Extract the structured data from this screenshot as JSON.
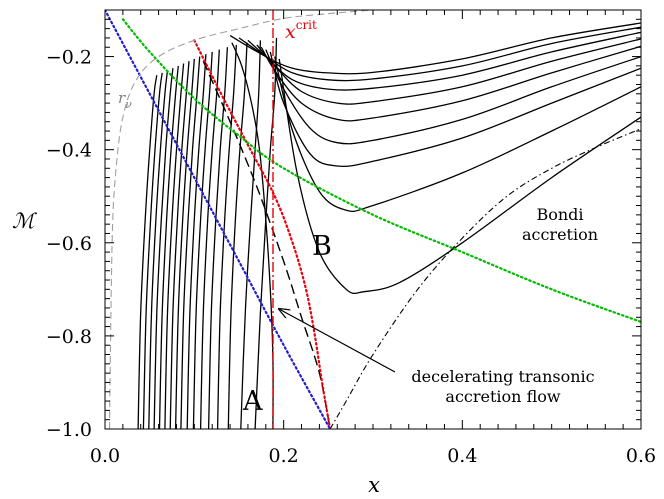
{
  "chart_data": {
    "type": "line",
    "xlabel": "x",
    "ylabel": "ℳ",
    "xlim": [
      0.0,
      0.6
    ],
    "ylim": [
      -1.0,
      -0.1
    ],
    "xticks": [
      "0.0",
      "0.2",
      "0.4",
      "0.6"
    ],
    "yticks": [
      "−1.0",
      "−0.8",
      "−0.6",
      "−0.4",
      "−0.2"
    ],
    "grid": false,
    "annotations": {
      "x_crit": {
        "base": "x",
        "sup": "crit",
        "x": 0.187
      },
      "r_nu": {
        "base": "r",
        "sub": "ν"
      },
      "region_A": "A",
      "region_B": "B",
      "bondi_line1": "Bondi",
      "bondi_line2": "accretion",
      "flow_line1": "decelerating transonic",
      "flow_line2": "accretion flow"
    },
    "colors": {
      "xcrit_line": "#e8000b",
      "red_dotted": "#e8000b",
      "blue_dotted": "#1f1fd0",
      "green_dotted": "#00bb00",
      "gray_dashed": "#a0a0a0",
      "solution_curves": "#000000"
    },
    "x_critical": 0.187,
    "sonic_point": {
      "x": 0.252,
      "y": -1.0
    },
    "series": [
      {
        "role": "subsonic-falling",
        "style": "solid",
        "points": [
          [
            0.037,
            -1.0
          ],
          [
            0.04,
            -0.75
          ],
          [
            0.045,
            -0.55
          ],
          [
            0.05,
            -0.4
          ],
          [
            0.055,
            -0.28
          ],
          [
            0.058,
            -0.24
          ]
        ]
      },
      {
        "role": "subsonic-falling",
        "style": "solid",
        "points": [
          [
            0.043,
            -1.0
          ],
          [
            0.046,
            -0.75
          ],
          [
            0.051,
            -0.55
          ],
          [
            0.056,
            -0.4
          ],
          [
            0.061,
            -0.28
          ],
          [
            0.064,
            -0.235
          ]
        ]
      },
      {
        "role": "subsonic-falling",
        "style": "solid",
        "points": [
          [
            0.049,
            -1.0
          ],
          [
            0.052,
            -0.75
          ],
          [
            0.057,
            -0.55
          ],
          [
            0.062,
            -0.4
          ],
          [
            0.067,
            -0.28
          ],
          [
            0.07,
            -0.23
          ]
        ]
      },
      {
        "role": "subsonic-falling",
        "style": "solid",
        "points": [
          [
            0.055,
            -1.0
          ],
          [
            0.058,
            -0.75
          ],
          [
            0.063,
            -0.55
          ],
          [
            0.068,
            -0.4
          ],
          [
            0.073,
            -0.28
          ],
          [
            0.076,
            -0.225
          ]
        ]
      },
      {
        "role": "subsonic-falling",
        "style": "solid",
        "points": [
          [
            0.061,
            -1.0
          ],
          [
            0.064,
            -0.75
          ],
          [
            0.069,
            -0.55
          ],
          [
            0.074,
            -0.4
          ],
          [
            0.079,
            -0.28
          ],
          [
            0.082,
            -0.22
          ]
        ]
      },
      {
        "role": "subsonic-falling",
        "style": "solid",
        "points": [
          [
            0.067,
            -1.0
          ],
          [
            0.07,
            -0.75
          ],
          [
            0.075,
            -0.55
          ],
          [
            0.08,
            -0.4
          ],
          [
            0.085,
            -0.28
          ],
          [
            0.088,
            -0.215
          ]
        ]
      },
      {
        "role": "subsonic-falling",
        "style": "solid",
        "points": [
          [
            0.073,
            -1.0
          ],
          [
            0.076,
            -0.75
          ],
          [
            0.081,
            -0.55
          ],
          [
            0.086,
            -0.4
          ],
          [
            0.091,
            -0.28
          ],
          [
            0.094,
            -0.21
          ]
        ]
      },
      {
        "role": "subsonic-falling",
        "style": "solid",
        "points": [
          [
            0.079,
            -1.0
          ],
          [
            0.082,
            -0.75
          ],
          [
            0.087,
            -0.55
          ],
          [
            0.092,
            -0.4
          ],
          [
            0.097,
            -0.28
          ],
          [
            0.1,
            -0.205
          ]
        ]
      },
      {
        "role": "subsonic-falling",
        "style": "solid",
        "points": [
          [
            0.085,
            -1.0
          ],
          [
            0.088,
            -0.75
          ],
          [
            0.093,
            -0.55
          ],
          [
            0.098,
            -0.4
          ],
          [
            0.103,
            -0.28
          ],
          [
            0.106,
            -0.2
          ]
        ]
      },
      {
        "role": "subsonic-falling",
        "style": "solid",
        "points": [
          [
            0.092,
            -1.0
          ],
          [
            0.095,
            -0.75
          ],
          [
            0.1,
            -0.55
          ],
          [
            0.105,
            -0.4
          ],
          [
            0.11,
            -0.28
          ],
          [
            0.113,
            -0.195
          ]
        ]
      },
      {
        "role": "subsonic-falling",
        "style": "solid",
        "points": [
          [
            0.099,
            -1.0
          ],
          [
            0.102,
            -0.75
          ],
          [
            0.107,
            -0.55
          ],
          [
            0.112,
            -0.4
          ],
          [
            0.117,
            -0.28
          ],
          [
            0.12,
            -0.19
          ]
        ]
      },
      {
        "role": "subsonic-falling",
        "style": "solid",
        "points": [
          [
            0.107,
            -1.0
          ],
          [
            0.11,
            -0.75
          ],
          [
            0.115,
            -0.55
          ],
          [
            0.12,
            -0.4
          ],
          [
            0.125,
            -0.28
          ],
          [
            0.128,
            -0.185
          ]
        ]
      },
      {
        "role": "subsonic-falling",
        "style": "solid",
        "points": [
          [
            0.116,
            -1.0
          ],
          [
            0.119,
            -0.75
          ],
          [
            0.124,
            -0.55
          ],
          [
            0.129,
            -0.4
          ],
          [
            0.134,
            -0.28
          ],
          [
            0.137,
            -0.18
          ]
        ]
      },
      {
        "role": "subsonic-falling",
        "style": "solid",
        "points": [
          [
            0.126,
            -1.0
          ],
          [
            0.129,
            -0.75
          ],
          [
            0.134,
            -0.55
          ],
          [
            0.139,
            -0.4
          ],
          [
            0.144,
            -0.28
          ],
          [
            0.147,
            -0.175
          ]
        ]
      },
      {
        "role": "subsonic-falling",
        "style": "solid",
        "points": [
          [
            0.138,
            -1.0
          ],
          [
            0.141,
            -0.75
          ],
          [
            0.146,
            -0.55
          ],
          [
            0.151,
            -0.4
          ],
          [
            0.156,
            -0.28
          ],
          [
            0.159,
            -0.17
          ]
        ]
      },
      {
        "role": "subsonic-falling",
        "style": "solid",
        "points": [
          [
            0.152,
            -1.0
          ],
          [
            0.157,
            -0.75
          ],
          [
            0.163,
            -0.55
          ],
          [
            0.168,
            -0.4
          ],
          [
            0.172,
            -0.28
          ],
          [
            0.174,
            -0.165
          ]
        ]
      },
      {
        "role": "subsonic-falling",
        "style": "solid",
        "points": [
          [
            0.168,
            -1.0
          ],
          [
            0.174,
            -0.75
          ],
          [
            0.18,
            -0.55
          ],
          [
            0.185,
            -0.4
          ],
          [
            0.19,
            -0.28
          ],
          [
            0.192,
            -0.16
          ]
        ]
      },
      {
        "role": "subsonic-falling",
        "style": "solid",
        "points": [
          [
            0.188,
            -1.0
          ],
          [
            0.188,
            -0.85
          ],
          [
            0.185,
            -0.7
          ],
          [
            0.18,
            -0.55
          ],
          [
            0.173,
            -0.4
          ],
          [
            0.164,
            -0.3
          ],
          [
            0.153,
            -0.22
          ],
          [
            0.142,
            -0.17
          ]
        ]
      },
      {
        "role": "U-shaped",
        "style": "solid",
        "points": [
          [
            0.14,
            -0.155
          ],
          [
            0.18,
            -0.2
          ],
          [
            0.21,
            -0.225
          ],
          [
            0.25,
            -0.235
          ],
          [
            0.3,
            -0.234
          ],
          [
            0.4,
            -0.205
          ],
          [
            0.5,
            -0.16
          ],
          [
            0.6,
            -0.128
          ]
        ]
      },
      {
        "role": "U-shaped",
        "style": "solid",
        "points": [
          [
            0.15,
            -0.16
          ],
          [
            0.18,
            -0.2
          ],
          [
            0.21,
            -0.235
          ],
          [
            0.25,
            -0.25
          ],
          [
            0.3,
            -0.248
          ],
          [
            0.4,
            -0.22
          ],
          [
            0.5,
            -0.172
          ],
          [
            0.6,
            -0.137
          ]
        ]
      },
      {
        "role": "U-shaped",
        "style": "solid",
        "points": [
          [
            0.16,
            -0.165
          ],
          [
            0.18,
            -0.2
          ],
          [
            0.21,
            -0.25
          ],
          [
            0.25,
            -0.27
          ],
          [
            0.3,
            -0.268
          ],
          [
            0.4,
            -0.24
          ],
          [
            0.5,
            -0.19
          ],
          [
            0.6,
            -0.148
          ]
        ]
      },
      {
        "role": "U-shaped",
        "style": "solid",
        "points": [
          [
            0.17,
            -0.175
          ],
          [
            0.19,
            -0.22
          ],
          [
            0.22,
            -0.275
          ],
          [
            0.26,
            -0.3
          ],
          [
            0.3,
            -0.297
          ],
          [
            0.4,
            -0.265
          ],
          [
            0.5,
            -0.21
          ],
          [
            0.6,
            -0.162
          ]
        ]
      },
      {
        "role": "U-shaped",
        "style": "solid",
        "points": [
          [
            0.175,
            -0.18
          ],
          [
            0.19,
            -0.23
          ],
          [
            0.22,
            -0.3
          ],
          [
            0.26,
            -0.335
          ],
          [
            0.3,
            -0.332
          ],
          [
            0.4,
            -0.295
          ],
          [
            0.5,
            -0.235
          ],
          [
            0.6,
            -0.178
          ]
        ]
      },
      {
        "role": "U-shaped",
        "style": "solid",
        "points": [
          [
            0.18,
            -0.185
          ],
          [
            0.2,
            -0.27
          ],
          [
            0.23,
            -0.355
          ],
          [
            0.26,
            -0.385
          ],
          [
            0.3,
            -0.38
          ],
          [
            0.4,
            -0.335
          ],
          [
            0.5,
            -0.265
          ],
          [
            0.6,
            -0.2
          ]
        ]
      },
      {
        "role": "U-shaped",
        "style": "solid",
        "points": [
          [
            0.185,
            -0.19
          ],
          [
            0.2,
            -0.3
          ],
          [
            0.23,
            -0.41
          ],
          [
            0.26,
            -0.435
          ],
          [
            0.3,
            -0.425
          ],
          [
            0.4,
            -0.375
          ],
          [
            0.5,
            -0.3
          ],
          [
            0.6,
            -0.225
          ]
        ]
      },
      {
        "role": "U-shaped",
        "style": "solid",
        "points": [
          [
            0.19,
            -0.2
          ],
          [
            0.21,
            -0.36
          ],
          [
            0.24,
            -0.49
          ],
          [
            0.27,
            -0.53
          ],
          [
            0.3,
            -0.52
          ],
          [
            0.4,
            -0.45
          ],
          [
            0.5,
            -0.36
          ],
          [
            0.6,
            -0.265
          ]
        ]
      },
      {
        "role": "U-shaped",
        "style": "solid",
        "points": [
          [
            0.195,
            -0.205
          ],
          [
            0.215,
            -0.45
          ],
          [
            0.24,
            -0.62
          ],
          [
            0.27,
            -0.7
          ],
          [
            0.29,
            -0.705
          ],
          [
            0.33,
            -0.685
          ],
          [
            0.4,
            -0.6
          ],
          [
            0.5,
            -0.46
          ],
          [
            0.6,
            -0.33
          ]
        ]
      },
      {
        "role": "transonic-accretion",
        "style": "dashed",
        "points": [
          [
            0.11,
            -0.21
          ],
          [
            0.14,
            -0.34
          ],
          [
            0.17,
            -0.48
          ],
          [
            0.2,
            -0.64
          ],
          [
            0.22,
            -0.76
          ],
          [
            0.24,
            -0.88
          ],
          [
            0.252,
            -1.0
          ]
        ]
      },
      {
        "role": "bondi-accretion",
        "style": "dash-dot",
        "points": [
          [
            0.252,
            -1.0
          ],
          [
            0.27,
            -0.94
          ],
          [
            0.3,
            -0.84
          ],
          [
            0.35,
            -0.7
          ],
          [
            0.4,
            -0.59
          ],
          [
            0.45,
            -0.5
          ],
          [
            0.5,
            -0.44
          ],
          [
            0.55,
            -0.395
          ],
          [
            0.6,
            -0.355
          ]
        ]
      },
      {
        "role": "red-dotted",
        "style": "dotted",
        "points": [
          [
            0.1,
            -0.165
          ],
          [
            0.13,
            -0.28
          ],
          [
            0.16,
            -0.39
          ],
          [
            0.19,
            -0.5
          ],
          [
            0.21,
            -0.6
          ],
          [
            0.225,
            -0.7
          ],
          [
            0.235,
            -0.8
          ],
          [
            0.243,
            -0.9
          ],
          [
            0.252,
            -1.0
          ]
        ]
      },
      {
        "role": "blue-dotted",
        "style": "dotted",
        "points": [
          [
            0.0,
            -0.1
          ],
          [
            0.05,
            -0.28
          ],
          [
            0.1,
            -0.46
          ],
          [
            0.15,
            -0.64
          ],
          [
            0.2,
            -0.82
          ],
          [
            0.252,
            -1.0
          ]
        ]
      },
      {
        "role": "green-dotted",
        "style": "dotted",
        "points": [
          [
            0.02,
            -0.12
          ],
          [
            0.05,
            -0.19
          ],
          [
            0.1,
            -0.29
          ],
          [
            0.15,
            -0.37
          ],
          [
            0.2,
            -0.44
          ],
          [
            0.3,
            -0.54
          ],
          [
            0.4,
            -0.62
          ],
          [
            0.5,
            -0.7
          ],
          [
            0.6,
            -0.77
          ]
        ]
      },
      {
        "role": "gray-dashed",
        "style": "dashed",
        "points": [
          [
            0.005,
            -1.0
          ],
          [
            0.008,
            -0.6
          ],
          [
            0.012,
            -0.45
          ],
          [
            0.02,
            -0.33
          ],
          [
            0.035,
            -0.25
          ],
          [
            0.06,
            -0.2
          ],
          [
            0.1,
            -0.165
          ],
          [
            0.15,
            -0.14
          ],
          [
            0.2,
            -0.118
          ],
          [
            0.25,
            -0.108
          ],
          [
            0.3,
            -0.1
          ]
        ]
      }
    ]
  }
}
